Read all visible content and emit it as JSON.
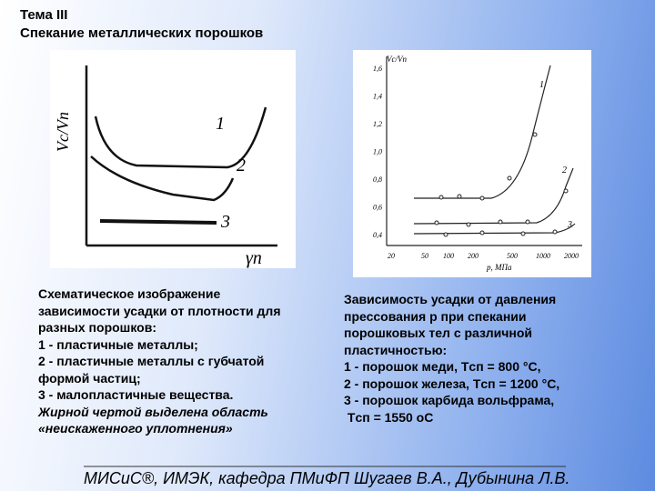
{
  "header": {
    "topic": "Тема III",
    "title": "Спекание металлических порошков"
  },
  "figure_left": {
    "y_label": "Vc/Vп",
    "x_label": "γп",
    "curve_labels": [
      "1",
      "2",
      "3"
    ]
  },
  "figure_right": {
    "y_label": "Vc/Vп",
    "x_label": "p, МПа",
    "y_tick_labels": [
      "1,6",
      "1,4",
      "1,2",
      "1,0",
      "0,8",
      "0,6",
      "0,4"
    ],
    "x_tick_labels": [
      "20",
      "50",
      "100",
      "200",
      "500",
      "1000",
      "2000"
    ],
    "curve_labels": [
      "1",
      "2",
      "3"
    ]
  },
  "caption_left": [
    "Схематическое изображение",
    "зависимости усадки от плотности для",
    "разных порошков:",
    "1 - пластичные металлы;",
    "2 - пластичные металлы с губчатой",
    "формой частиц;",
    "3 - малопластичные вещества.",
    "Жирной чертой выделена область",
    "«неискаженного уплотнения»"
  ],
  "caption_right": [
    "Зависимость усадки от давления",
    "прессования р при спекании",
    "порошковых тел с различной",
    "пластичностью:",
    "1 - порошок меди, Tсп = 800 °С,",
    "2 - порошок железа, Tсп = 1200 °С,",
    "3 - порошок карбида вольфрама,",
    " Tсп = 1550 oС"
  ],
  "footer": "МИСиС®, ИМЭК, кафедра ПМиФП Шугаев В.А., Дубынина Л.В."
}
